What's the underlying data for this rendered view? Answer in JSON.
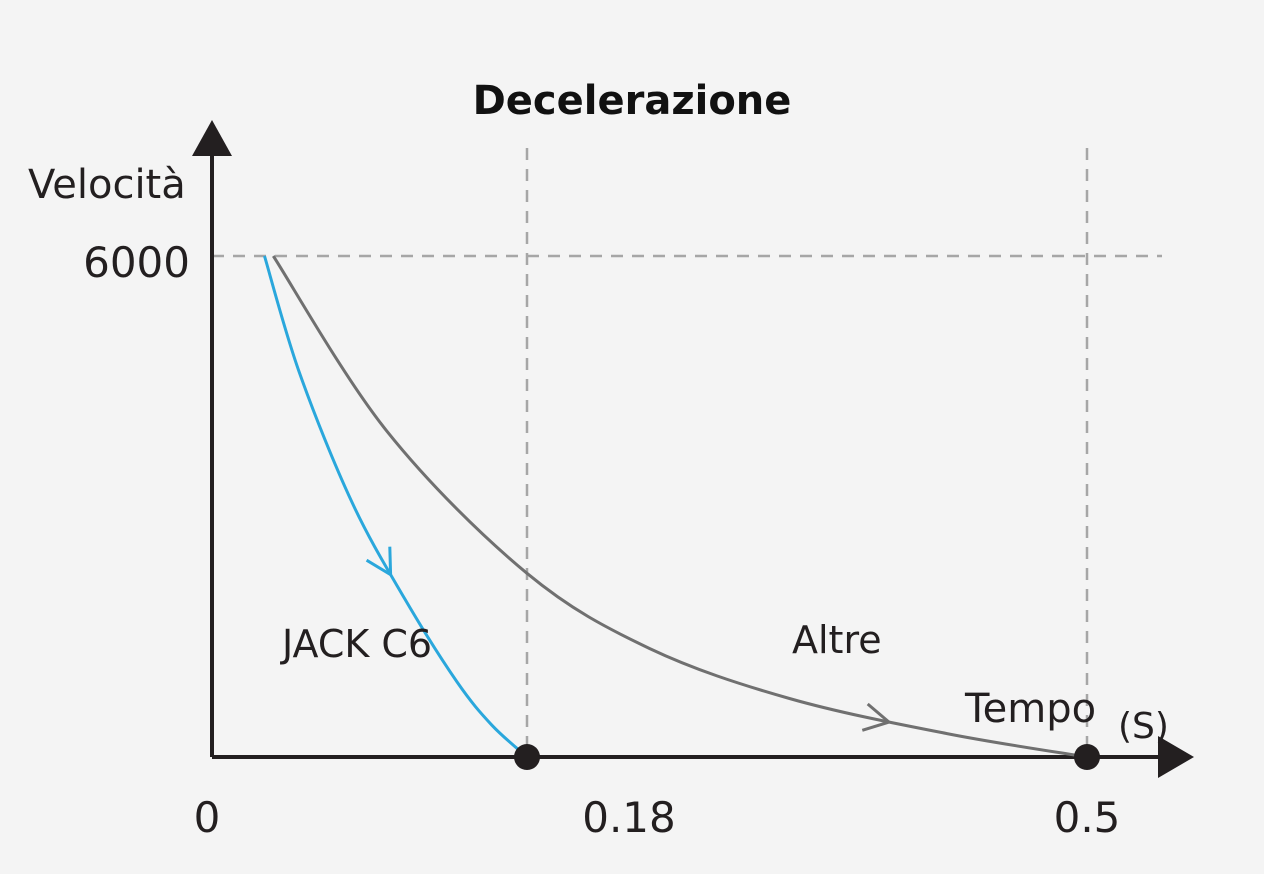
{
  "chart_data": {
    "type": "line",
    "title": "Decelerazione",
    "xlabel": "Tempo",
    "xunit": "(S)",
    "ylabel": "Velocità",
    "xlim": [
      0,
      0.5
    ],
    "ylim": [
      0,
      6000
    ],
    "x_ticks": [
      "0",
      "0.18",
      "0.5"
    ],
    "y_ticks": [
      "6000"
    ],
    "grid": "dashed reference lines at x=0.18, x=0.5 and y=6000",
    "series": [
      {
        "name": "JACK C6",
        "color": "#2aa7dc",
        "x": [
          0.03,
          0.05,
          0.08,
          0.11,
          0.14,
          0.16,
          0.18
        ],
        "y": [
          6000,
          4600,
          3050,
          1900,
          900,
          380,
          0
        ]
      },
      {
        "name": "Altre",
        "color": "#707070",
        "x": [
          0.035,
          0.1,
          0.18,
          0.25,
          0.33,
          0.42,
          0.5
        ],
        "y": [
          6000,
          3900,
          2200,
          1300,
          700,
          280,
          0
        ]
      }
    ],
    "end_markers": [
      0.18,
      0.5
    ]
  }
}
